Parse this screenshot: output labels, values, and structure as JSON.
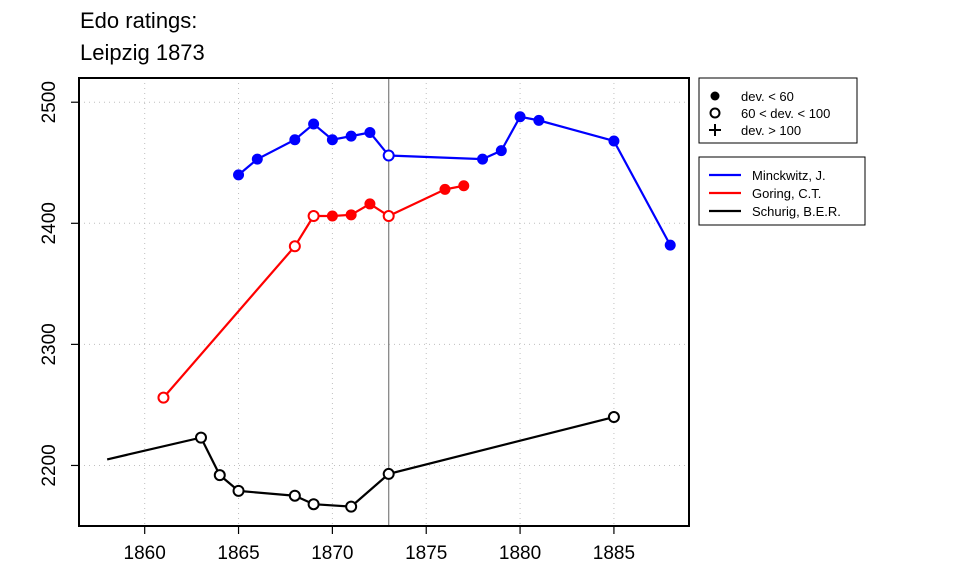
{
  "chart_data": {
    "type": "line",
    "title_lines": [
      "Edo ratings:",
      "Leipzig 1873"
    ],
    "xlabel": "",
    "ylabel": "",
    "xlim": [
      1856.5,
      1889
    ],
    "ylim": [
      2150,
      2520
    ],
    "x_ticks": [
      1860,
      1865,
      1870,
      1875,
      1880,
      1885
    ],
    "y_ticks": [
      2200,
      2300,
      2400,
      2500
    ],
    "grid": true,
    "reference_line_x": 1873,
    "series": [
      {
        "name": "Minckwitz, J.",
        "color": "#0000ff",
        "points": [
          {
            "x": 1865,
            "y": 2440,
            "marker": "filled"
          },
          {
            "x": 1866,
            "y": 2453,
            "marker": "filled"
          },
          {
            "x": 1868,
            "y": 2469,
            "marker": "filled"
          },
          {
            "x": 1869,
            "y": 2482,
            "marker": "filled"
          },
          {
            "x": 1870,
            "y": 2469,
            "marker": "filled"
          },
          {
            "x": 1871,
            "y": 2472,
            "marker": "filled"
          },
          {
            "x": 1872,
            "y": 2475,
            "marker": "filled"
          },
          {
            "x": 1873,
            "y": 2456,
            "marker": "open"
          },
          {
            "x": 1878,
            "y": 2453,
            "marker": "filled"
          },
          {
            "x": 1879,
            "y": 2460,
            "marker": "filled"
          },
          {
            "x": 1880,
            "y": 2488,
            "marker": "filled"
          },
          {
            "x": 1881,
            "y": 2485,
            "marker": "filled"
          },
          {
            "x": 1885,
            "y": 2468,
            "marker": "filled"
          },
          {
            "x": 1888,
            "y": 2382,
            "marker": "filled"
          }
        ]
      },
      {
        "name": "Goring, C.T.",
        "color": "#ff0000",
        "points": [
          {
            "x": 1861,
            "y": 2256,
            "marker": "open"
          },
          {
            "x": 1868,
            "y": 2381,
            "marker": "open"
          },
          {
            "x": 1869,
            "y": 2406,
            "marker": "open"
          },
          {
            "x": 1870,
            "y": 2406,
            "marker": "filled"
          },
          {
            "x": 1871,
            "y": 2407,
            "marker": "filled"
          },
          {
            "x": 1872,
            "y": 2416,
            "marker": "filled"
          },
          {
            "x": 1873,
            "y": 2406,
            "marker": "open"
          },
          {
            "x": 1876,
            "y": 2428,
            "marker": "filled"
          },
          {
            "x": 1877,
            "y": 2431,
            "marker": "filled"
          }
        ]
      },
      {
        "name": "Schurig, B.E.R.",
        "color": "#000000",
        "points": [
          {
            "x": 1858,
            "y": 2205,
            "marker": "none"
          },
          {
            "x": 1863,
            "y": 2223,
            "marker": "open"
          },
          {
            "x": 1864,
            "y": 2192,
            "marker": "open"
          },
          {
            "x": 1865,
            "y": 2179,
            "marker": "open"
          },
          {
            "x": 1868,
            "y": 2175,
            "marker": "open"
          },
          {
            "x": 1869,
            "y": 2168,
            "marker": "open"
          },
          {
            "x": 1871,
            "y": 2166,
            "marker": "open"
          },
          {
            "x": 1873,
            "y": 2193,
            "marker": "open"
          },
          {
            "x": 1885,
            "y": 2240,
            "marker": "open"
          }
        ]
      }
    ],
    "legend_markers": [
      {
        "symbol": "filled",
        "label": "dev. < 60"
      },
      {
        "symbol": "open",
        "label": "60 < dev. < 100"
      },
      {
        "symbol": "plus",
        "label": "dev. > 100"
      }
    ],
    "legend_placement": "right of plot"
  }
}
